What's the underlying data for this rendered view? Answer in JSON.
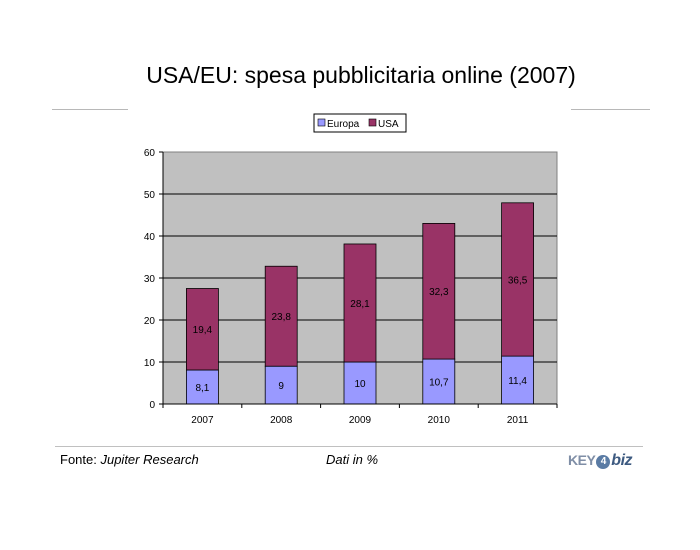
{
  "title": "USA/EU: spesa pubblicitaria online (2007)",
  "footer": {
    "source_prefix": "Fonte: ",
    "source_name": "Jupiter Research",
    "note": "Dati in %"
  },
  "logo": {
    "part1": "KEY",
    "part2": "4",
    "part3": "biz"
  },
  "colors": {
    "europa": "#9999ff",
    "usa": "#993366",
    "plot_bg": "#c0c0c0"
  },
  "chart_data": {
    "type": "bar",
    "stacked": true,
    "categories": [
      "2007",
      "2008",
      "2009",
      "2010",
      "2011"
    ],
    "series": [
      {
        "name": "Europa",
        "values": [
          8.1,
          9,
          10,
          10.7,
          11.4
        ],
        "labels": [
          "8,1",
          "9",
          "10",
          "10,7",
          "11,4"
        ]
      },
      {
        "name": "USA",
        "values": [
          19.4,
          23.8,
          28.1,
          32.3,
          36.5
        ],
        "labels": [
          "19,4",
          "23,8",
          "28,1",
          "32,3",
          "36,5"
        ]
      }
    ],
    "ylim": [
      0,
      60
    ],
    "yticks": [
      "0",
      "10",
      "20",
      "30",
      "40",
      "50",
      "60"
    ],
    "grid": true,
    "legend": "top"
  }
}
